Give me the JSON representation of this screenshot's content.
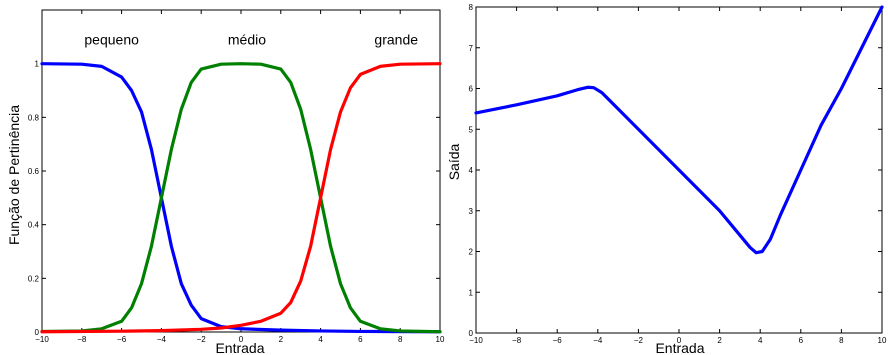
{
  "chart_data": [
    {
      "type": "line",
      "title": "",
      "xlabel": "Entrada",
      "ylabel": "Função de Pertinência",
      "xlim": [
        -10,
        10
      ],
      "ylim": [
        0,
        1.2
      ],
      "xticks": [
        -10,
        -8,
        -6,
        -4,
        -2,
        0,
        2,
        4,
        6,
        8,
        10
      ],
      "yticks": [
        0,
        0.2,
        0.4,
        0.6,
        0.8,
        1
      ],
      "ytick_labels": [
        "0",
        "0.2",
        "0.4",
        "0.6",
        "0.8",
        "1"
      ],
      "grid": false,
      "annotations": [
        {
          "text": "pequeno",
          "x": -6.5,
          "y": 1.09
        },
        {
          "text": "médio",
          "x": 0.3,
          "y": 1.09
        },
        {
          "text": "grande",
          "x": 7.8,
          "y": 1.09
        }
      ],
      "series": [
        {
          "color": "#0000ff",
          "x": [
            -10,
            -8,
            -7,
            -6,
            -5.5,
            -5,
            -4.5,
            -4,
            -3.5,
            -3,
            -2.5,
            -2,
            -1,
            0,
            2,
            4,
            6,
            10
          ],
          "y": [
            1.0,
            0.998,
            0.99,
            0.95,
            0.9,
            0.82,
            0.68,
            0.5,
            0.32,
            0.18,
            0.1,
            0.05,
            0.02,
            0.012,
            0.007,
            0.004,
            0.002,
            0.001
          ]
        },
        {
          "color": "#008000",
          "x": [
            -10,
            -8,
            -7,
            -6,
            -5.5,
            -5,
            -4.5,
            -4,
            -3.5,
            -3,
            -2.5,
            -2,
            -1,
            0,
            1,
            2,
            2.5,
            3,
            3.5,
            4,
            4.5,
            5,
            5.5,
            6,
            7,
            8,
            10
          ],
          "y": [
            0.002,
            0.004,
            0.012,
            0.04,
            0.09,
            0.18,
            0.32,
            0.5,
            0.68,
            0.83,
            0.93,
            0.98,
            0.998,
            1.0,
            0.998,
            0.98,
            0.93,
            0.83,
            0.68,
            0.5,
            0.32,
            0.18,
            0.09,
            0.04,
            0.012,
            0.004,
            0.001
          ]
        },
        {
          "color": "#ff0000",
          "x": [
            -10,
            -6,
            -4,
            -2,
            -1,
            0,
            1,
            2,
            2.5,
            3,
            3.5,
            4,
            4.5,
            5,
            5.5,
            6,
            7,
            8,
            10
          ],
          "y": [
            0.001,
            0.003,
            0.005,
            0.01,
            0.015,
            0.025,
            0.04,
            0.07,
            0.11,
            0.19,
            0.32,
            0.5,
            0.68,
            0.82,
            0.91,
            0.96,
            0.99,
            0.998,
            1.0
          ]
        }
      ]
    },
    {
      "type": "line",
      "title": "",
      "xlabel": "Entrada",
      "ylabel": "Saída",
      "xlim": [
        -10,
        10
      ],
      "ylim": [
        0,
        8
      ],
      "xticks": [
        -10,
        -8,
        -6,
        -4,
        -2,
        0,
        2,
        4,
        6,
        8,
        10
      ],
      "yticks": [
        0,
        1,
        2,
        3,
        4,
        5,
        6,
        7,
        8
      ],
      "grid": false,
      "series": [
        {
          "color": "#0000ff",
          "x": [
            -10,
            -8,
            -6,
            -5,
            -4.5,
            -4.2,
            -3.8,
            -3,
            -2,
            -1,
            0,
            1,
            2,
            3,
            3.5,
            3.8,
            4.1,
            4.5,
            5,
            6,
            7,
            8,
            9,
            10
          ],
          "y": [
            5.4,
            5.6,
            5.82,
            5.97,
            6.03,
            6.02,
            5.9,
            5.5,
            5.0,
            4.5,
            4.0,
            3.5,
            3.0,
            2.4,
            2.1,
            1.97,
            2.0,
            2.3,
            2.9,
            4.0,
            5.1,
            6.0,
            7.0,
            8.0
          ]
        }
      ]
    }
  ]
}
